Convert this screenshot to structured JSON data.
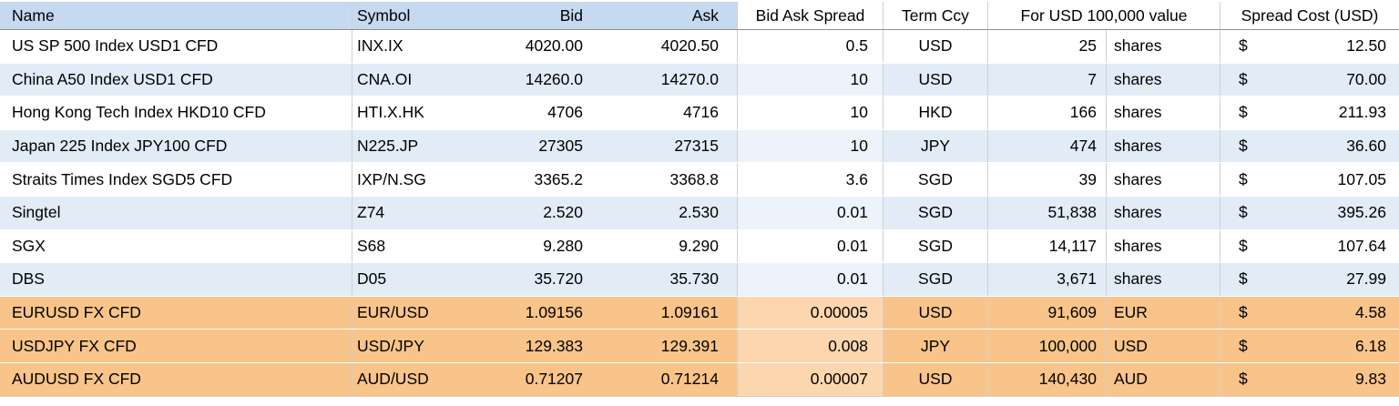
{
  "header": {
    "name": "Name",
    "symbol": "Symbol",
    "bid": "Bid",
    "ask": "Ask",
    "spread": "Bid Ask Spread",
    "term": "Term Ccy",
    "value": "For USD 100,000 value",
    "cost": "Spread Cost (USD)"
  },
  "rows": [
    {
      "name": "US SP 500 Index USD1 CFD",
      "symbol": "INX.IX",
      "bid": "4020.00",
      "ask": "4020.50",
      "spread": "0.5",
      "term": "USD",
      "value": "25",
      "unit": "shares",
      "currency": "$",
      "cost": "12.50",
      "highlighted": false
    },
    {
      "name": "China A50 Index USD1 CFD",
      "symbol": "CNA.OI",
      "bid": "14260.0",
      "ask": "14270.0",
      "spread": "10",
      "term": "USD",
      "value": "7",
      "unit": "shares",
      "currency": "$",
      "cost": "70.00",
      "highlighted": false
    },
    {
      "name": "Hong Kong Tech Index HKD10 CFD",
      "symbol": "HTI.X.HK",
      "bid": "4706",
      "ask": "4716",
      "spread": "10",
      "term": "HKD",
      "value": "166",
      "unit": "shares",
      "currency": "$",
      "cost": "211.93",
      "highlighted": false
    },
    {
      "name": "Japan 225 Index JPY100 CFD",
      "symbol": "N225.JP",
      "bid": "27305",
      "ask": "27315",
      "spread": "10",
      "term": "JPY",
      "value": "474",
      "unit": "shares",
      "currency": "$",
      "cost": "36.60",
      "highlighted": false
    },
    {
      "name": "Straits Times Index SGD5 CFD",
      "symbol": "IXP/N.SG",
      "bid": "3365.2",
      "ask": "3368.8",
      "spread": "3.6",
      "term": "SGD",
      "value": "39",
      "unit": "shares",
      "currency": "$",
      "cost": "107.05",
      "highlighted": false
    },
    {
      "name": "Singtel",
      "symbol": "Z74",
      "bid": "2.520",
      "ask": "2.530",
      "spread": "0.01",
      "term": "SGD",
      "value": "51,838",
      "unit": "shares",
      "currency": "$",
      "cost": "395.26",
      "highlighted": false
    },
    {
      "name": "SGX",
      "symbol": "S68",
      "bid": "9.280",
      "ask": "9.290",
      "spread": "0.01",
      "term": "SGD",
      "value": "14,117",
      "unit": "shares",
      "currency": "$",
      "cost": "107.64",
      "highlighted": false
    },
    {
      "name": "DBS",
      "symbol": "D05",
      "bid": "35.720",
      "ask": "35.730",
      "spread": "0.01",
      "term": "SGD",
      "value": "3,671",
      "unit": "shares",
      "currency": "$",
      "cost": "27.99",
      "highlighted": false
    },
    {
      "name": "EURUSD FX CFD",
      "symbol": "EUR/USD",
      "bid": "1.09156",
      "ask": "1.09161",
      "spread": "0.00005",
      "term": "USD",
      "value": "91,609",
      "unit": "EUR",
      "currency": "$",
      "cost": "4.58",
      "highlighted": true
    },
    {
      "name": "USDJPY FX CFD",
      "symbol": "USD/JPY",
      "bid": "129.383",
      "ask": "129.391",
      "spread": "0.008",
      "term": "JPY",
      "value": "100,000",
      "unit": "USD",
      "currency": "$",
      "cost": "6.18",
      "highlighted": true
    },
    {
      "name": "AUDUSD FX CFD",
      "symbol": "AUD/USD",
      "bid": "0.71207",
      "ask": "0.71214",
      "spread": "0.00007",
      "term": "USD",
      "value": "140,430",
      "unit": "AUD",
      "currency": "$",
      "cost": "9.83",
      "highlighted": true
    }
  ],
  "colors": {
    "header_fill": "#c5d9f1",
    "row_alt_fill": "#e1ecf7",
    "row_alt_spread_fill": "#ecf3fa",
    "fx_fill": "#f8c489",
    "fx_spread_fill": "#fcd6ae",
    "grid_line": "#d0d0d0",
    "header_border": "#8f8f8f",
    "text": "#000000"
  }
}
